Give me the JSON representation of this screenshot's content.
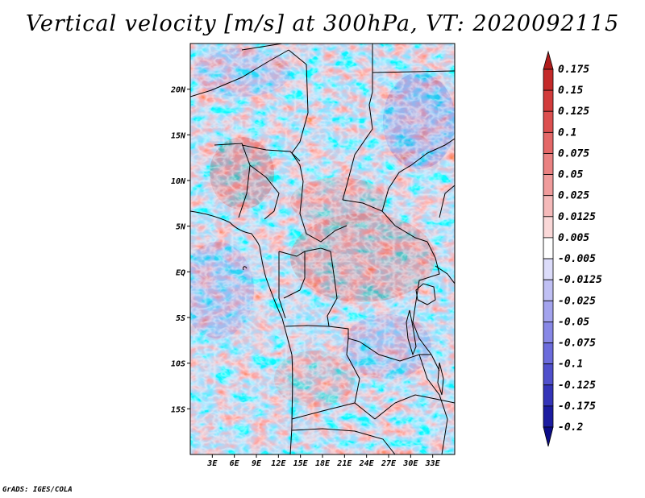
{
  "title": "Vertical velocity [m/s] at 300hPa, VT: 2020092115",
  "credit": "GrADS: IGES/COLA",
  "map": {
    "lon_range": [
      0,
      36
    ],
    "lat_range": [
      -20,
      25
    ],
    "x_ticks": [
      "3E",
      "6E",
      "9E",
      "12E",
      "15E",
      "18E",
      "21E",
      "24E",
      "27E",
      "30E",
      "33E"
    ],
    "x_tick_values": [
      3,
      6,
      9,
      12,
      15,
      18,
      21,
      24,
      27,
      30,
      33
    ],
    "y_ticks": [
      "20N",
      "15N",
      "10N",
      "5N",
      "EQ",
      "5S",
      "10S",
      "15S"
    ],
    "y_tick_values": [
      20,
      15,
      10,
      5,
      0,
      -5,
      -10,
      -15
    ]
  },
  "colorbar": {
    "labels": [
      "0.175",
      "0.15",
      "0.125",
      "0.1",
      "0.075",
      "0.05",
      "0.025",
      "0.0125",
      "0.005",
      "-0.005",
      "-0.0125",
      "-0.025",
      "-0.05",
      "-0.075",
      "-0.1",
      "-0.125",
      "-0.175",
      "-0.2"
    ],
    "colors": [
      "#b01c1c",
      "#c42a2a",
      "#d23c3c",
      "#dc5050",
      "#e46868",
      "#ea8282",
      "#f09c9c",
      "#f5baba",
      "#fad8d8",
      "#ffffff",
      "#dcdcfa",
      "#c0c0f4",
      "#a4a4ee",
      "#8888e6",
      "#6c6cdc",
      "#5050cc",
      "#3434b8",
      "#1c1ca0",
      "#0c0c88"
    ]
  },
  "colors": {
    "land_border": "#000000",
    "positive": "#e87070",
    "negative": "#7070e8"
  }
}
